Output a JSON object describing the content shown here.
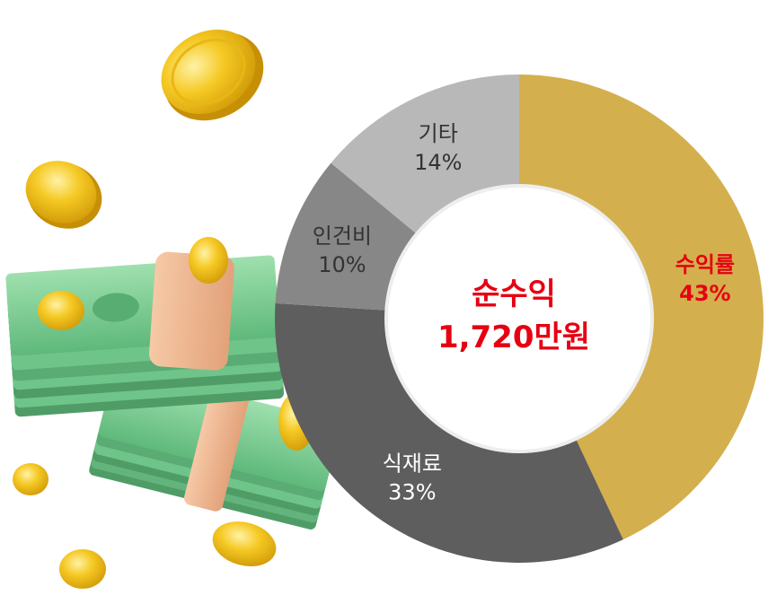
{
  "chart_data": {
    "type": "pie",
    "donut": true,
    "categories": [
      "수익률",
      "식재료",
      "인건비",
      "기타"
    ],
    "values": [
      43,
      33,
      10,
      14
    ],
    "labels": [
      "43%",
      "33%",
      "10%",
      "14%"
    ],
    "colors": [
      "#d4af4d",
      "#5e5e5e",
      "#878787",
      "#b8b8b8"
    ],
    "label_colors": [
      "#e60012",
      "#ffffff",
      "#333333",
      "#333333"
    ],
    "center_line_1": "순수익",
    "center_line_2": "1,720만원",
    "center_color": "#e60012",
    "legend": "none"
  },
  "illustration": {
    "money_color": "#6fc48a",
    "band_color": "#e9b48f",
    "coin_color": "#f2c21a"
  }
}
